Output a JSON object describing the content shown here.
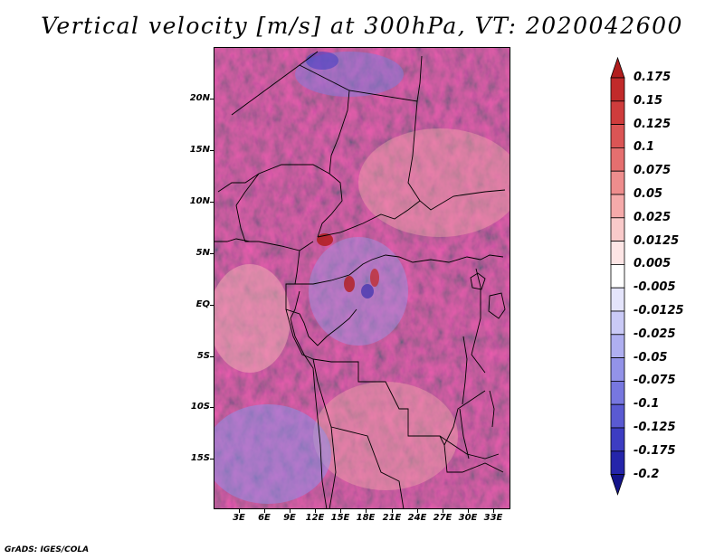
{
  "title": "Vertical velocity [m/s] at 300hPa, VT: 2020042600",
  "credit": "GrADS: IGES/COLA",
  "lat_labels": [
    "20N",
    "15N",
    "10N",
    "5N",
    "EQ",
    "5S",
    "10S",
    "15S"
  ],
  "lon_labels": [
    "3E",
    "6E",
    "9E",
    "12E",
    "15E",
    "18E",
    "21E",
    "24E",
    "27E",
    "30E",
    "33E"
  ],
  "colorbar": {
    "levels": [
      "0.175",
      "0.15",
      "0.125",
      "0.1",
      "0.075",
      "0.05",
      "0.025",
      "0.0125",
      "0.005",
      "-0.005",
      "-0.0125",
      "-0.025",
      "-0.05",
      "-0.075",
      "-0.1",
      "-0.125",
      "-0.175",
      "-0.2"
    ],
    "colors": [
      "#b11d1d",
      "#c12a2a",
      "#cf3c3c",
      "#db5555",
      "#e56f6f",
      "#ee8d8d",
      "#f5aaaa",
      "#f9caca",
      "#fde5e5",
      "#ffffff",
      "#e4e4fb",
      "#cacaf6",
      "#afaff0",
      "#9393e8",
      "#7777df",
      "#5a5ad2",
      "#3d3dc2",
      "#2525aa",
      "#14148a"
    ]
  },
  "colors": {
    "warm": "#e06464",
    "cold": "#6464dc",
    "neutral": "#f6f2f8"
  }
}
